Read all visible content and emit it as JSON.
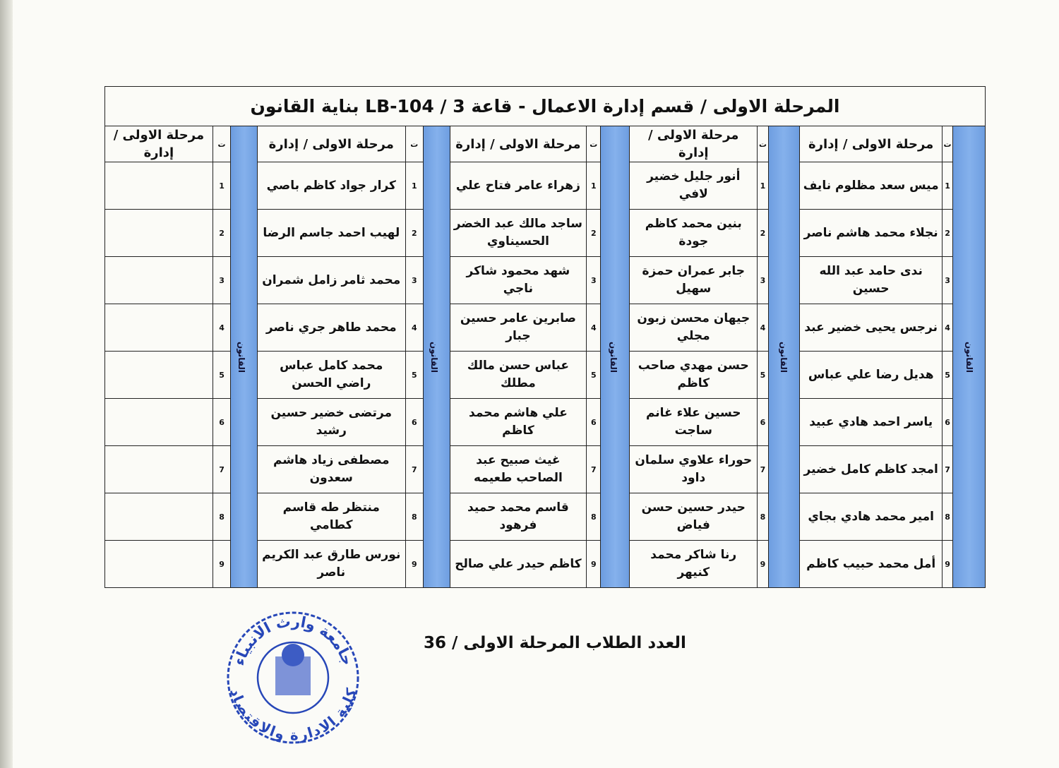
{
  "title": "المرحلة الاولى / قسم إدارة الاعمال - قاعة 3 / LB-104 بناية القانون",
  "blue_label": "القانون",
  "colors": {
    "strip": "#7aa8e8",
    "stamp": "#2747b8"
  },
  "groups": [
    {
      "header_num": "ت",
      "header": "مرحلة الاولى / إدارة",
      "students": [
        {
          "n": "1",
          "name": "ميس سعد مظلوم نايف"
        },
        {
          "n": "2",
          "name": "نجلاء محمد هاشم ناصر"
        },
        {
          "n": "3",
          "name": "ندى حامد عبد الله حسين"
        },
        {
          "n": "4",
          "name": "نرجس يحيى خضير عبد"
        },
        {
          "n": "5",
          "name": "هديل رضا علي عباس"
        },
        {
          "n": "6",
          "name": "ياسر احمد هادي عبيد"
        },
        {
          "n": "7",
          "name": "امجد كاظم كامل خضير"
        },
        {
          "n": "8",
          "name": "امير محمد هادي بجاي"
        },
        {
          "n": "9",
          "name": "أمل محمد حبيب كاظم"
        }
      ]
    },
    {
      "header_num": "ت",
      "header": "مرحلة الاولى / إدارة",
      "students": [
        {
          "n": "1",
          "name": "أنور جليل خضير لافي"
        },
        {
          "n": "2",
          "name": "بنين محمد كاظم جودة"
        },
        {
          "n": "3",
          "name": "جابر عمران حمزة سهيل"
        },
        {
          "n": "4",
          "name": "جيهان محسن زبون مجلي"
        },
        {
          "n": "5",
          "name": "حسن مهدي صاحب كاظم"
        },
        {
          "n": "6",
          "name": "حسين علاء غانم ساجت"
        },
        {
          "n": "7",
          "name": "حوراء علاوي سلمان داود"
        },
        {
          "n": "8",
          "name": "حيدر حسين حسن فياض"
        },
        {
          "n": "9",
          "name": "رنا شاكر محمد كنيهر"
        }
      ]
    },
    {
      "header_num": "ت",
      "header": "مرحلة الاولى / إدارة",
      "students": [
        {
          "n": "1",
          "name": "زهراء عامر فتاح علي"
        },
        {
          "n": "2",
          "name": "ساجد مالك عبد الخضر الحسيناوي"
        },
        {
          "n": "3",
          "name": "شهد محمود شاكر ناجي"
        },
        {
          "n": "4",
          "name": "صابرين عامر حسين جبار"
        },
        {
          "n": "5",
          "name": "عباس حسن مالك مطلك"
        },
        {
          "n": "6",
          "name": "علي هاشم محمد كاظم"
        },
        {
          "n": "7",
          "name": "غيث صبيح عبد الصاحب طعيمه"
        },
        {
          "n": "8",
          "name": "قاسم محمد حميد فرهود"
        },
        {
          "n": "9",
          "name": "كاظم حيدر علي صالح"
        }
      ]
    },
    {
      "header_num": "ت",
      "header": "مرحلة الاولى / إدارة",
      "students": [
        {
          "n": "1",
          "name": "كرار جواد كاظم باصي"
        },
        {
          "n": "2",
          "name": "لهيب احمد جاسم الرضا"
        },
        {
          "n": "3",
          "name": "محمد ثامر زامل شمران"
        },
        {
          "n": "4",
          "name": "محمد طاهر جري ناصر"
        },
        {
          "n": "5",
          "name": "محمد كامل عباس راضي الحسن"
        },
        {
          "n": "6",
          "name": "مرتضى خضير حسين رشيد"
        },
        {
          "n": "7",
          "name": "مصطفى زياد هاشم سعدون"
        },
        {
          "n": "8",
          "name": "منتظر طه قاسم كطامي"
        },
        {
          "n": "9",
          "name": "نورس طارق عبد الكريم ناصر"
        }
      ]
    },
    {
      "header_num": "ت",
      "header": "مرحلة الاولى / إدارة",
      "students": [
        {
          "n": "1",
          "name": ""
        },
        {
          "n": "2",
          "name": ""
        },
        {
          "n": "3",
          "name": ""
        },
        {
          "n": "4",
          "name": ""
        },
        {
          "n": "5",
          "name": ""
        },
        {
          "n": "6",
          "name": ""
        },
        {
          "n": "7",
          "name": ""
        },
        {
          "n": "8",
          "name": ""
        },
        {
          "n": "9",
          "name": ""
        }
      ]
    }
  ],
  "footer": "العدد الطلاب المرحلة الاولى / 36",
  "stamp": {
    "top_text": "جامعة وارث الانبياء",
    "bottom_text": "كلية الادارة والاقتصاد"
  }
}
